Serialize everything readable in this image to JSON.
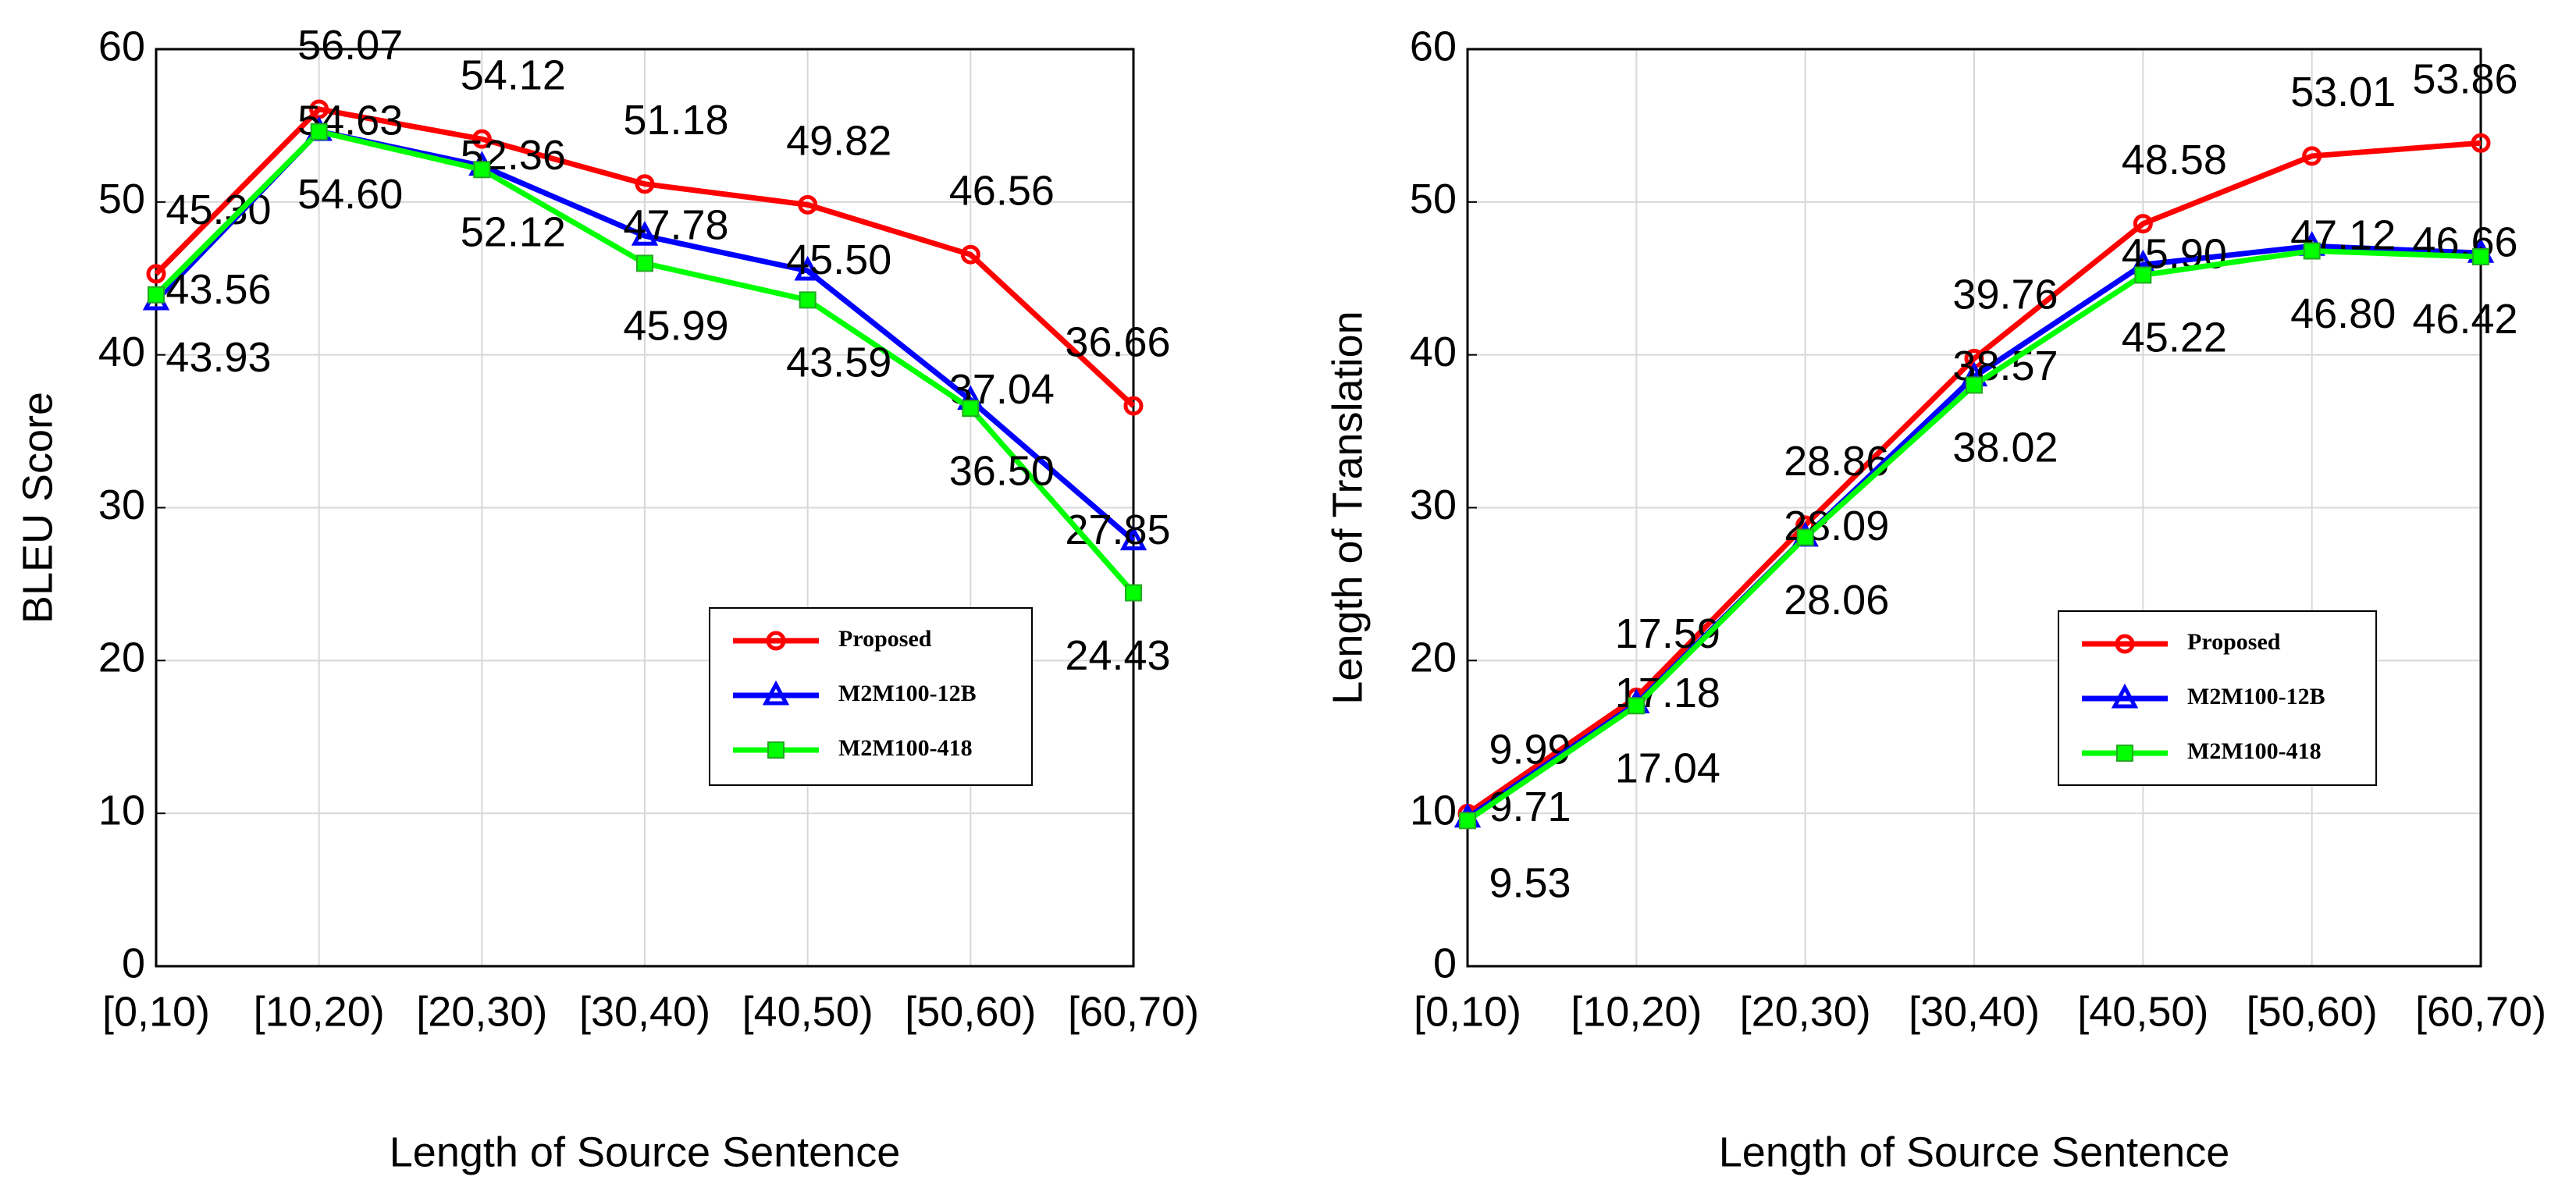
{
  "chart_data": [
    {
      "type": "line",
      "ylabel": "BLEU Score",
      "xlabel": "Length of Source Sentence",
      "categories": [
        "[0,10)",
        "[10,20)",
        "[20,30)",
        "[30,40)",
        "[40,50)",
        "[50,60)",
        "[60,70)"
      ],
      "ylim": [
        0,
        60
      ],
      "yticks": [
        0,
        10,
        20,
        30,
        40,
        50,
        60
      ],
      "grid": true,
      "series": [
        {
          "name": "Proposed",
          "color": "#ff0000",
          "marker": "circle",
          "values": [
            45.3,
            56.07,
            54.12,
            51.18,
            49.82,
            46.56,
            36.66
          ],
          "value_labels": [
            "45.30",
            "56.07",
            "54.12",
            "51.18",
            "49.82",
            "46.56",
            "36.66"
          ]
        },
        {
          "name": "M2M100-12B",
          "color": "#0000ff",
          "marker": "triangle",
          "values": [
            43.56,
            54.63,
            52.36,
            47.78,
            45.5,
            37.04,
            27.85
          ],
          "value_labels": [
            "43.56",
            "54.63",
            "52.36",
            "47.78",
            "45.50",
            "37.04",
            "27.85"
          ]
        },
        {
          "name": "M2M100-418",
          "color": "#00ff00",
          "marker": "square",
          "values": [
            43.93,
            54.6,
            52.12,
            45.99,
            43.59,
            36.5,
            24.43
          ],
          "value_labels": [
            "43.93",
            "54.60",
            "52.12",
            "45.99",
            "43.59",
            "36.50",
            "24.43"
          ]
        }
      ]
    },
    {
      "type": "line",
      "ylabel": "Length of Translation",
      "xlabel": "Length of Source Sentence",
      "categories": [
        "[0,10)",
        "[10,20)",
        "[20,30)",
        "[30,40)",
        "[40,50)",
        "[50,60)",
        "[60,70)"
      ],
      "ylim": [
        0,
        60
      ],
      "yticks": [
        0,
        10,
        20,
        30,
        40,
        50,
        60
      ],
      "grid": true,
      "series": [
        {
          "name": "Proposed",
          "color": "#ff0000",
          "marker": "circle",
          "values": [
            9.99,
            17.59,
            28.86,
            39.76,
            48.58,
            53.01,
            53.86
          ],
          "value_labels": [
            "9.99",
            "17.59",
            "28.86",
            "39.76",
            "48.58",
            "53.01",
            "53.86"
          ]
        },
        {
          "name": "M2M100-12B",
          "color": "#0000ff",
          "marker": "triangle",
          "values": [
            9.71,
            17.18,
            28.09,
            38.57,
            45.9,
            47.12,
            46.66
          ],
          "value_labels": [
            "9.71",
            "17.18",
            "28.09",
            "38.57",
            "45.90",
            "47.12",
            "46.66"
          ]
        },
        {
          "name": "M2M100-418",
          "color": "#00ff00",
          "marker": "square",
          "values": [
            9.53,
            17.04,
            28.06,
            38.02,
            45.22,
            46.8,
            46.42
          ],
          "value_labels": [
            "9.53",
            "17.04",
            "28.06",
            "38.02",
            "45.22",
            "46.80",
            "46.42"
          ]
        }
      ]
    }
  ]
}
